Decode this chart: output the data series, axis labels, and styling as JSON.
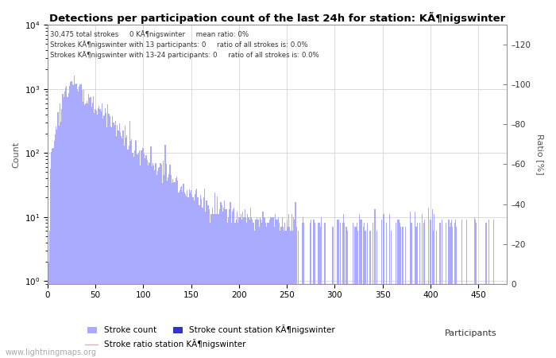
{
  "title": "Detections per participation count of the last 24h for station: KÃ¶nigswinter",
  "annotation_lines": [
    "30,475 total strokes     0 KÃ¶nigswinter     mean ratio: 0%",
    "Strokes KÃ¶nigswinter with 13 participants: 0     ratio of all strokes is: 0.0%",
    "Strokes KÃ¶nigswinter with 13-24 participants: 0     ratio of all strokes is: 0.0%"
  ],
  "xlabel": "Participants",
  "ylabel_left": "Count",
  "ylabel_right": "Ratio [%]",
  "bar_color_global": "#aaaaff",
  "bar_color_station": "#3333cc",
  "line_color_ratio": "#ff99dd",
  "legend_labels": [
    "Stroke count",
    "Stroke count station KÃ¶nigswinter",
    "Stroke ratio station KÃ¶nigswinter"
  ],
  "watermark": "www.lightningmaps.org",
  "xlim": [
    0,
    480
  ],
  "ylim_right": [
    0,
    130
  ],
  "right_yticks": [
    0,
    20,
    40,
    60,
    80,
    100,
    120
  ],
  "background_color": "#ffffff",
  "grid_color": "#cccccc"
}
